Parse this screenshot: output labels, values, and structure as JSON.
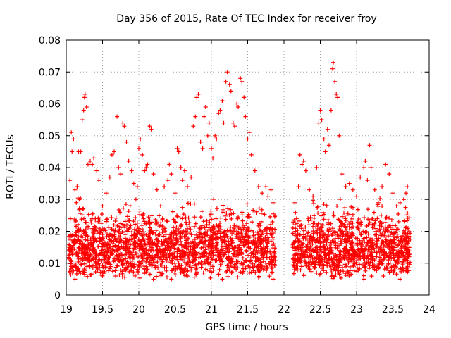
{
  "chart_data": {
    "type": "scatter",
    "title": "Day 356 of 2015, Rate Of TEC Index for receiver froy",
    "xlabel": "GPS time / hours",
    "ylabel": "ROTI / TECUs",
    "xlim": [
      19,
      24
    ],
    "ylim": [
      0,
      0.08
    ],
    "xticks": [
      19,
      19.5,
      20,
      20.5,
      21,
      21.5,
      22,
      22.5,
      23,
      23.5,
      24
    ],
    "xtick_labels": [
      "19",
      "19.5",
      "20",
      "20.5",
      "21",
      "21.5",
      "22",
      "22.5",
      "23",
      "23.5",
      "24"
    ],
    "yticks": [
      0,
      0.01,
      0.02,
      0.03,
      0.04,
      0.05,
      0.06,
      0.07,
      0.08
    ],
    "ytick_labels": [
      "0",
      "0.01",
      "0.02",
      "0.03",
      "0.04",
      "0.05",
      "0.06",
      "0.07",
      "0.08"
    ],
    "grid": true,
    "marker": "+",
    "color": "#ff0000",
    "data_gap_hours": [
      21.88,
      22.12
    ],
    "series": [
      {
        "name": "ROTI",
        "points": [
          [
            19.05,
            0.036
          ],
          [
            19.07,
            0.051
          ],
          [
            19.08,
            0.045
          ],
          [
            19.1,
            0.049
          ],
          [
            19.12,
            0.033
          ],
          [
            19.15,
            0.034
          ],
          [
            19.17,
            0.045
          ],
          [
            19.18,
            0.03
          ],
          [
            19.2,
            0.045
          ],
          [
            19.22,
            0.055
          ],
          [
            19.24,
            0.058
          ],
          [
            19.25,
            0.062
          ],
          [
            19.26,
            0.063
          ],
          [
            19.28,
            0.059
          ],
          [
            19.3,
            0.041
          ],
          [
            19.33,
            0.042
          ],
          [
            19.36,
            0.041
          ],
          [
            19.38,
            0.043
          ],
          [
            19.42,
            0.039
          ],
          [
            19.45,
            0.036
          ],
          [
            19.5,
            0.028
          ],
          [
            19.55,
            0.032
          ],
          [
            19.6,
            0.037
          ],
          [
            19.63,
            0.044
          ],
          [
            19.66,
            0.045
          ],
          [
            19.7,
            0.056
          ],
          [
            19.72,
            0.04
          ],
          [
            19.75,
            0.038
          ],
          [
            19.78,
            0.054
          ],
          [
            19.8,
            0.053
          ],
          [
            19.83,
            0.048
          ],
          [
            19.86,
            0.042
          ],
          [
            19.9,
            0.039
          ],
          [
            19.93,
            0.035
          ],
          [
            19.96,
            0.03
          ],
          [
            19.98,
            0.034
          ],
          [
            20.0,
            0.046
          ],
          [
            20.02,
            0.049
          ],
          [
            20.05,
            0.044
          ],
          [
            20.08,
            0.039
          ],
          [
            20.1,
            0.04
          ],
          [
            20.12,
            0.041
          ],
          [
            20.15,
            0.053
          ],
          [
            20.17,
            0.052
          ],
          [
            20.2,
            0.038
          ],
          [
            20.25,
            0.033
          ],
          [
            20.3,
            0.028
          ],
          [
            20.35,
            0.034
          ],
          [
            20.4,
            0.036
          ],
          [
            20.42,
            0.041
          ],
          [
            20.45,
            0.038
          ],
          [
            20.5,
            0.032
          ],
          [
            20.53,
            0.046
          ],
          [
            20.55,
            0.045
          ],
          [
            20.58,
            0.04
          ],
          [
            20.6,
            0.036
          ],
          [
            20.63,
            0.039
          ],
          [
            20.67,
            0.034
          ],
          [
            20.72,
            0.037
          ],
          [
            20.75,
            0.053
          ],
          [
            20.78,
            0.056
          ],
          [
            20.8,
            0.062
          ],
          [
            20.82,
            0.063
          ],
          [
            20.85,
            0.048
          ],
          [
            20.88,
            0.046
          ],
          [
            20.9,
            0.056
          ],
          [
            20.92,
            0.059
          ],
          [
            20.95,
            0.05
          ],
          [
            20.97,
            0.054
          ],
          [
            21.0,
            0.046
          ],
          [
            21.02,
            0.043
          ],
          [
            21.05,
            0.05
          ],
          [
            21.07,
            0.049
          ],
          [
            21.1,
            0.057
          ],
          [
            21.12,
            0.058
          ],
          [
            21.15,
            0.061
          ],
          [
            21.17,
            0.054
          ],
          [
            21.2,
            0.067
          ],
          [
            21.22,
            0.07
          ],
          [
            21.25,
            0.066
          ],
          [
            21.27,
            0.064
          ],
          [
            21.3,
            0.054
          ],
          [
            21.32,
            0.053
          ],
          [
            21.35,
            0.06
          ],
          [
            21.37,
            0.059
          ],
          [
            21.4,
            0.068
          ],
          [
            21.42,
            0.067
          ],
          [
            21.45,
            0.062
          ],
          [
            21.47,
            0.056
          ],
          [
            21.5,
            0.049
          ],
          [
            21.52,
            0.051
          ],
          [
            21.55,
            0.044
          ],
          [
            21.6,
            0.039
          ],
          [
            21.65,
            0.034
          ],
          [
            21.7,
            0.032
          ],
          [
            21.75,
            0.034
          ],
          [
            21.78,
            0.031
          ],
          [
            21.82,
            0.033
          ],
          [
            21.85,
            0.029
          ],
          [
            22.15,
            0.029
          ],
          [
            22.2,
            0.034
          ],
          [
            22.22,
            0.044
          ],
          [
            22.25,
            0.041
          ],
          [
            22.27,
            0.042
          ],
          [
            22.3,
            0.039
          ],
          [
            22.35,
            0.033
          ],
          [
            22.4,
            0.031
          ],
          [
            22.45,
            0.04
          ],
          [
            22.48,
            0.054
          ],
          [
            22.5,
            0.058
          ],
          [
            22.52,
            0.055
          ],
          [
            22.55,
            0.049
          ],
          [
            22.57,
            0.045
          ],
          [
            22.6,
            0.052
          ],
          [
            22.62,
            0.047
          ],
          [
            22.65,
            0.058
          ],
          [
            22.67,
            0.071
          ],
          [
            22.68,
            0.073
          ],
          [
            22.7,
            0.067
          ],
          [
            22.72,
            0.063
          ],
          [
            22.74,
            0.062
          ],
          [
            22.76,
            0.05
          ],
          [
            22.8,
            0.038
          ],
          [
            22.85,
            0.034
          ],
          [
            22.9,
            0.035
          ],
          [
            22.95,
            0.033
          ],
          [
            23.0,
            0.031
          ],
          [
            23.05,
            0.037
          ],
          [
            23.1,
            0.04
          ],
          [
            23.12,
            0.042
          ],
          [
            23.15,
            0.036
          ],
          [
            23.18,
            0.047
          ],
          [
            23.2,
            0.04
          ],
          [
            23.25,
            0.033
          ],
          [
            23.3,
            0.029
          ],
          [
            23.35,
            0.034
          ],
          [
            23.4,
            0.041
          ],
          [
            23.45,
            0.038
          ],
          [
            23.5,
            0.032
          ],
          [
            23.55,
            0.028
          ],
          [
            23.6,
            0.029
          ],
          [
            23.65,
            0.03
          ],
          [
            23.68,
            0.032
          ],
          [
            23.7,
            0.034
          ],
          [
            19.12,
            0.005
          ],
          [
            19.5,
            0.006
          ],
          [
            19.95,
            0.006
          ],
          [
            20.2,
            0.005
          ],
          [
            20.45,
            0.005
          ],
          [
            21.15,
            0.005
          ],
          [
            21.85,
            0.005
          ],
          [
            22.9,
            0.006
          ],
          [
            23.1,
            0.005
          ],
          [
            23.6,
            0.005
          ]
        ]
      }
    ],
    "dense_band": {
      "description": "dense clusters of points",
      "segments": [
        {
          "x_start": 19.03,
          "x_end": 21.88,
          "y_low": 0.005,
          "y_high": 0.03,
          "count": 1800
        },
        {
          "x_start": 22.12,
          "x_end": 23.74,
          "y_low": 0.005,
          "y_high": 0.03,
          "count": 1100
        }
      ]
    }
  }
}
